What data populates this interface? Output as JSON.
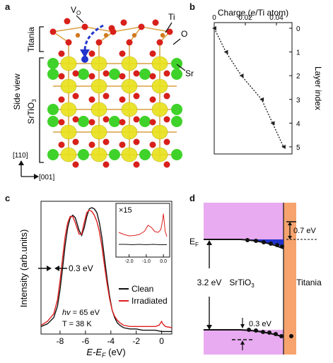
{
  "panel_letters": {
    "a": "a",
    "b": "b",
    "c": "c",
    "d": "d"
  },
  "panel_a": {
    "labels": {
      "vo": "V",
      "vo_sub": "O",
      "ti": "Ti",
      "o": "O",
      "sr": "Sr",
      "titania": "Titania",
      "side_view": "Side view",
      "srtio3_main": "SrTiO",
      "srtio3_sub": "3",
      "dir_vertical": "[110]",
      "dir_horizontal": "[001]"
    },
    "colors": {
      "sr": "#3fd22a",
      "o": "#d8201a",
      "ti_cloud": "#e8e21a",
      "bond": "#d9a040",
      "vac": "#2233cc"
    }
  },
  "chart_data": [
    {
      "id": "b",
      "type": "line",
      "title": "Charge (e/Ti atom)",
      "xlabel": "Charge (e/Ti atom)",
      "ylabel": "Layer index",
      "xlim": [
        0,
        0.05
      ],
      "ylim": [
        0,
        5.3
      ],
      "xticks": [
        "0",
        "0.02",
        "0.04"
      ],
      "xtick_values": [
        0,
        0.02,
        0.04
      ],
      "yticks": [
        "0",
        "1",
        "2",
        "3",
        "4",
        "5"
      ],
      "y_reversed": true,
      "series": [
        {
          "x": [
            0.0,
            0.0075,
            0.0175,
            0.0305,
            0.0375,
            0.0445
          ],
          "y": [
            0,
            1,
            2,
            3,
            4,
            5
          ]
        }
      ]
    },
    {
      "id": "c",
      "type": "line",
      "xlabel": "E-E",
      "xlabel_sub": "F",
      "xlabel_unit": " (eV)",
      "ylabel": "Intensity (arb.units)",
      "xlim": [
        -9.5,
        0.8
      ],
      "ylim": [
        0,
        1.05
      ],
      "xticks": [
        "-8",
        "-6",
        "-4",
        "-2",
        "0"
      ],
      "xtick_values": [
        -8,
        -6,
        -4,
        -2,
        0
      ],
      "series": [
        {
          "name": "Clean",
          "color": "#111111",
          "x": [
            -9.5,
            -9.0,
            -8.5,
            -8.2,
            -8.0,
            -7.8,
            -7.6,
            -7.4,
            -7.2,
            -7.0,
            -6.8,
            -6.5,
            -6.3,
            -6.1,
            -5.9,
            -5.7,
            -5.5,
            -5.3,
            -5.1,
            -4.9,
            -4.7,
            -4.5,
            -4.3,
            -4.1,
            -3.9,
            -3.7,
            -3.5,
            -3.3,
            -3.0,
            -2.5,
            -2.0,
            -1.5,
            -1.0,
            -0.5,
            0.0,
            0.3,
            0.8
          ],
          "y": [
            0.06,
            0.08,
            0.13,
            0.22,
            0.35,
            0.52,
            0.7,
            0.84,
            0.92,
            0.94,
            0.92,
            0.82,
            0.78,
            0.84,
            0.93,
            0.99,
            1.0,
            0.99,
            0.96,
            0.88,
            0.76,
            0.6,
            0.44,
            0.3,
            0.19,
            0.13,
            0.09,
            0.07,
            0.05,
            0.04,
            0.04,
            0.03,
            0.03,
            0.03,
            0.02,
            0.02,
            0.02
          ]
        },
        {
          "name": "Irradiated",
          "color": "#e02020",
          "x": [
            -9.5,
            -9.0,
            -8.5,
            -8.2,
            -8.0,
            -7.8,
            -7.6,
            -7.4,
            -7.2,
            -7.0,
            -6.8,
            -6.5,
            -6.3,
            -6.1,
            -5.9,
            -5.7,
            -5.5,
            -5.3,
            -5.1,
            -4.9,
            -4.7,
            -4.5,
            -4.3,
            -4.1,
            -3.9,
            -3.7,
            -3.5,
            -3.3,
            -3.0,
            -2.5,
            -2.0,
            -1.5,
            -1.0,
            -0.5,
            -0.2,
            0.0,
            0.1,
            0.3,
            0.8
          ],
          "y": [
            0.07,
            0.1,
            0.16,
            0.27,
            0.42,
            0.6,
            0.77,
            0.88,
            0.93,
            0.93,
            0.88,
            0.79,
            0.79,
            0.88,
            0.96,
            0.98,
            0.97,
            0.94,
            0.89,
            0.81,
            0.69,
            0.54,
            0.4,
            0.28,
            0.19,
            0.14,
            0.11,
            0.09,
            0.07,
            0.06,
            0.06,
            0.06,
            0.06,
            0.06,
            0.07,
            0.1,
            0.08,
            0.06,
            0.05
          ]
        }
      ],
      "legend": [
        "Clean",
        "Irradiated"
      ],
      "annotations": {
        "width": "0.3 eV",
        "hv_label": "hv",
        "hv_value": " = 65 eV",
        "temp": "T = 38 K"
      },
      "inset": {
        "label": "×15",
        "xticks": [
          "-2.0",
          "-1.0",
          "0.0"
        ],
        "xtick_values": [
          -2.0,
          -1.0,
          0.0
        ],
        "xlim": [
          -2.6,
          0.2
        ],
        "series": [
          {
            "name": "Clean",
            "x": [
              -2.6,
              -2.2,
              -1.8,
              -1.4,
              -1.0,
              -0.6,
              -0.2,
              0.0,
              0.2
            ],
            "y": [
              0.08,
              0.08,
              0.07,
              0.08,
              0.07,
              0.08,
              0.07,
              0.07,
              0.07
            ]
          },
          {
            "name": "Irradiated",
            "x": [
              -2.6,
              -2.3,
              -2.0,
              -1.7,
              -1.4,
              -1.1,
              -0.9,
              -0.7,
              -0.5,
              -0.3,
              -0.15,
              -0.05,
              0.0,
              0.05,
              0.1,
              0.2
            ],
            "y": [
              0.42,
              0.36,
              0.32,
              0.33,
              0.36,
              0.45,
              0.62,
              0.56,
              0.44,
              0.42,
              0.5,
              0.75,
              0.95,
              0.7,
              0.45,
              0.3
            ]
          }
        ]
      }
    }
  ],
  "panel_d": {
    "labels": {
      "ef": "E",
      "ef_sub": "F",
      "gap": "3.2 eV",
      "srtio3_main": "SrTiO",
      "srtio3_sub": "3",
      "titania": "Titania",
      "offset_top": "0.7 eV",
      "offset_bottom": "0.3 eV"
    },
    "colors": {
      "band": "#e8aaf0",
      "titania": "#f6a36e",
      "depletion": "#2233cc"
    }
  }
}
